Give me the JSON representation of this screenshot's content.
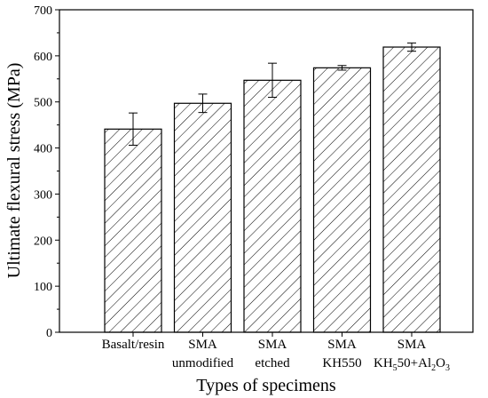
{
  "chart_data": {
    "type": "bar",
    "categories": [
      [
        "Basalt/resin"
      ],
      [
        "SMA",
        "unmodified"
      ],
      [
        "SMA",
        "etched"
      ],
      [
        "SMA",
        "KH550"
      ],
      [
        "SMA",
        "KH550+Al2O3"
      ]
    ],
    "values": [
      441,
      497,
      547,
      574,
      619
    ],
    "errors": [
      35,
      20,
      37,
      5,
      9
    ],
    "xlabel": "Types of specimens",
    "ylabel": "Ultimate flexural stress (MPa)",
    "ylim": [
      0,
      700
    ],
    "yticks": [
      0,
      100,
      200,
      300,
      400,
      500,
      600,
      700
    ],
    "bar_fill": "hatched",
    "bar_color": "#000000",
    "grid": false,
    "legend": "none"
  }
}
